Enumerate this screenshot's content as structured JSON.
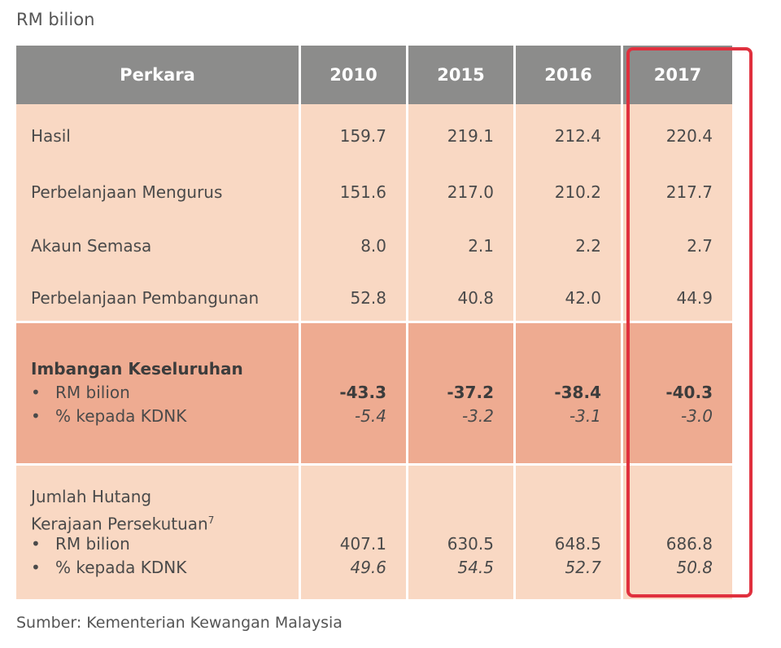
{
  "unit_label": "RM bilion",
  "header": {
    "item": "Perkara",
    "years": [
      "2010",
      "2015",
      "2016",
      "2017"
    ]
  },
  "rows": [
    {
      "label": "Hasil",
      "values": [
        "159.7",
        "219.1",
        "212.4",
        "220.4"
      ]
    },
    {
      "label": "Perbelanjaan Mengurus",
      "values": [
        "151.6",
        "217.0",
        "210.2",
        "217.7"
      ]
    },
    {
      "label": "Akaun Semasa",
      "values": [
        "8.0",
        "2.1",
        "2.2",
        "2.7"
      ]
    },
    {
      "label": "Perbelanjaan Pembangunan",
      "values": [
        "52.8",
        "40.8",
        "42.0",
        "44.9"
      ]
    }
  ],
  "balance": {
    "title": "Imbangan Keseluruhan",
    "bullet_rm": "RM bilion",
    "bullet_pct": "% kepada KDNK",
    "rm_values": [
      "-43.3",
      "-37.2",
      "-38.4",
      "-40.3"
    ],
    "pct_values": [
      "-5.4",
      "-3.2",
      "-3.1",
      "-3.0"
    ]
  },
  "debt": {
    "title_line1": "Jumlah Hutang",
    "title_line2": "Kerajaan Persekutuan",
    "footnote": "7",
    "bullet_rm": "RM bilion",
    "bullet_pct": "% kepada KDNK",
    "rm_values": [
      "407.1",
      "630.5",
      "648.5",
      "686.8"
    ],
    "pct_values": [
      "49.6",
      "54.5",
      "52.7",
      "50.8"
    ]
  },
  "source": "Sumber: Kementerian Kewangan Malaysia",
  "bullet_char": "•",
  "colors": {
    "header_bg": "#8c8c8b",
    "row_bg": "#f9d8c3",
    "balance_bg": "#eeab91",
    "highlight": "#e0303e"
  }
}
